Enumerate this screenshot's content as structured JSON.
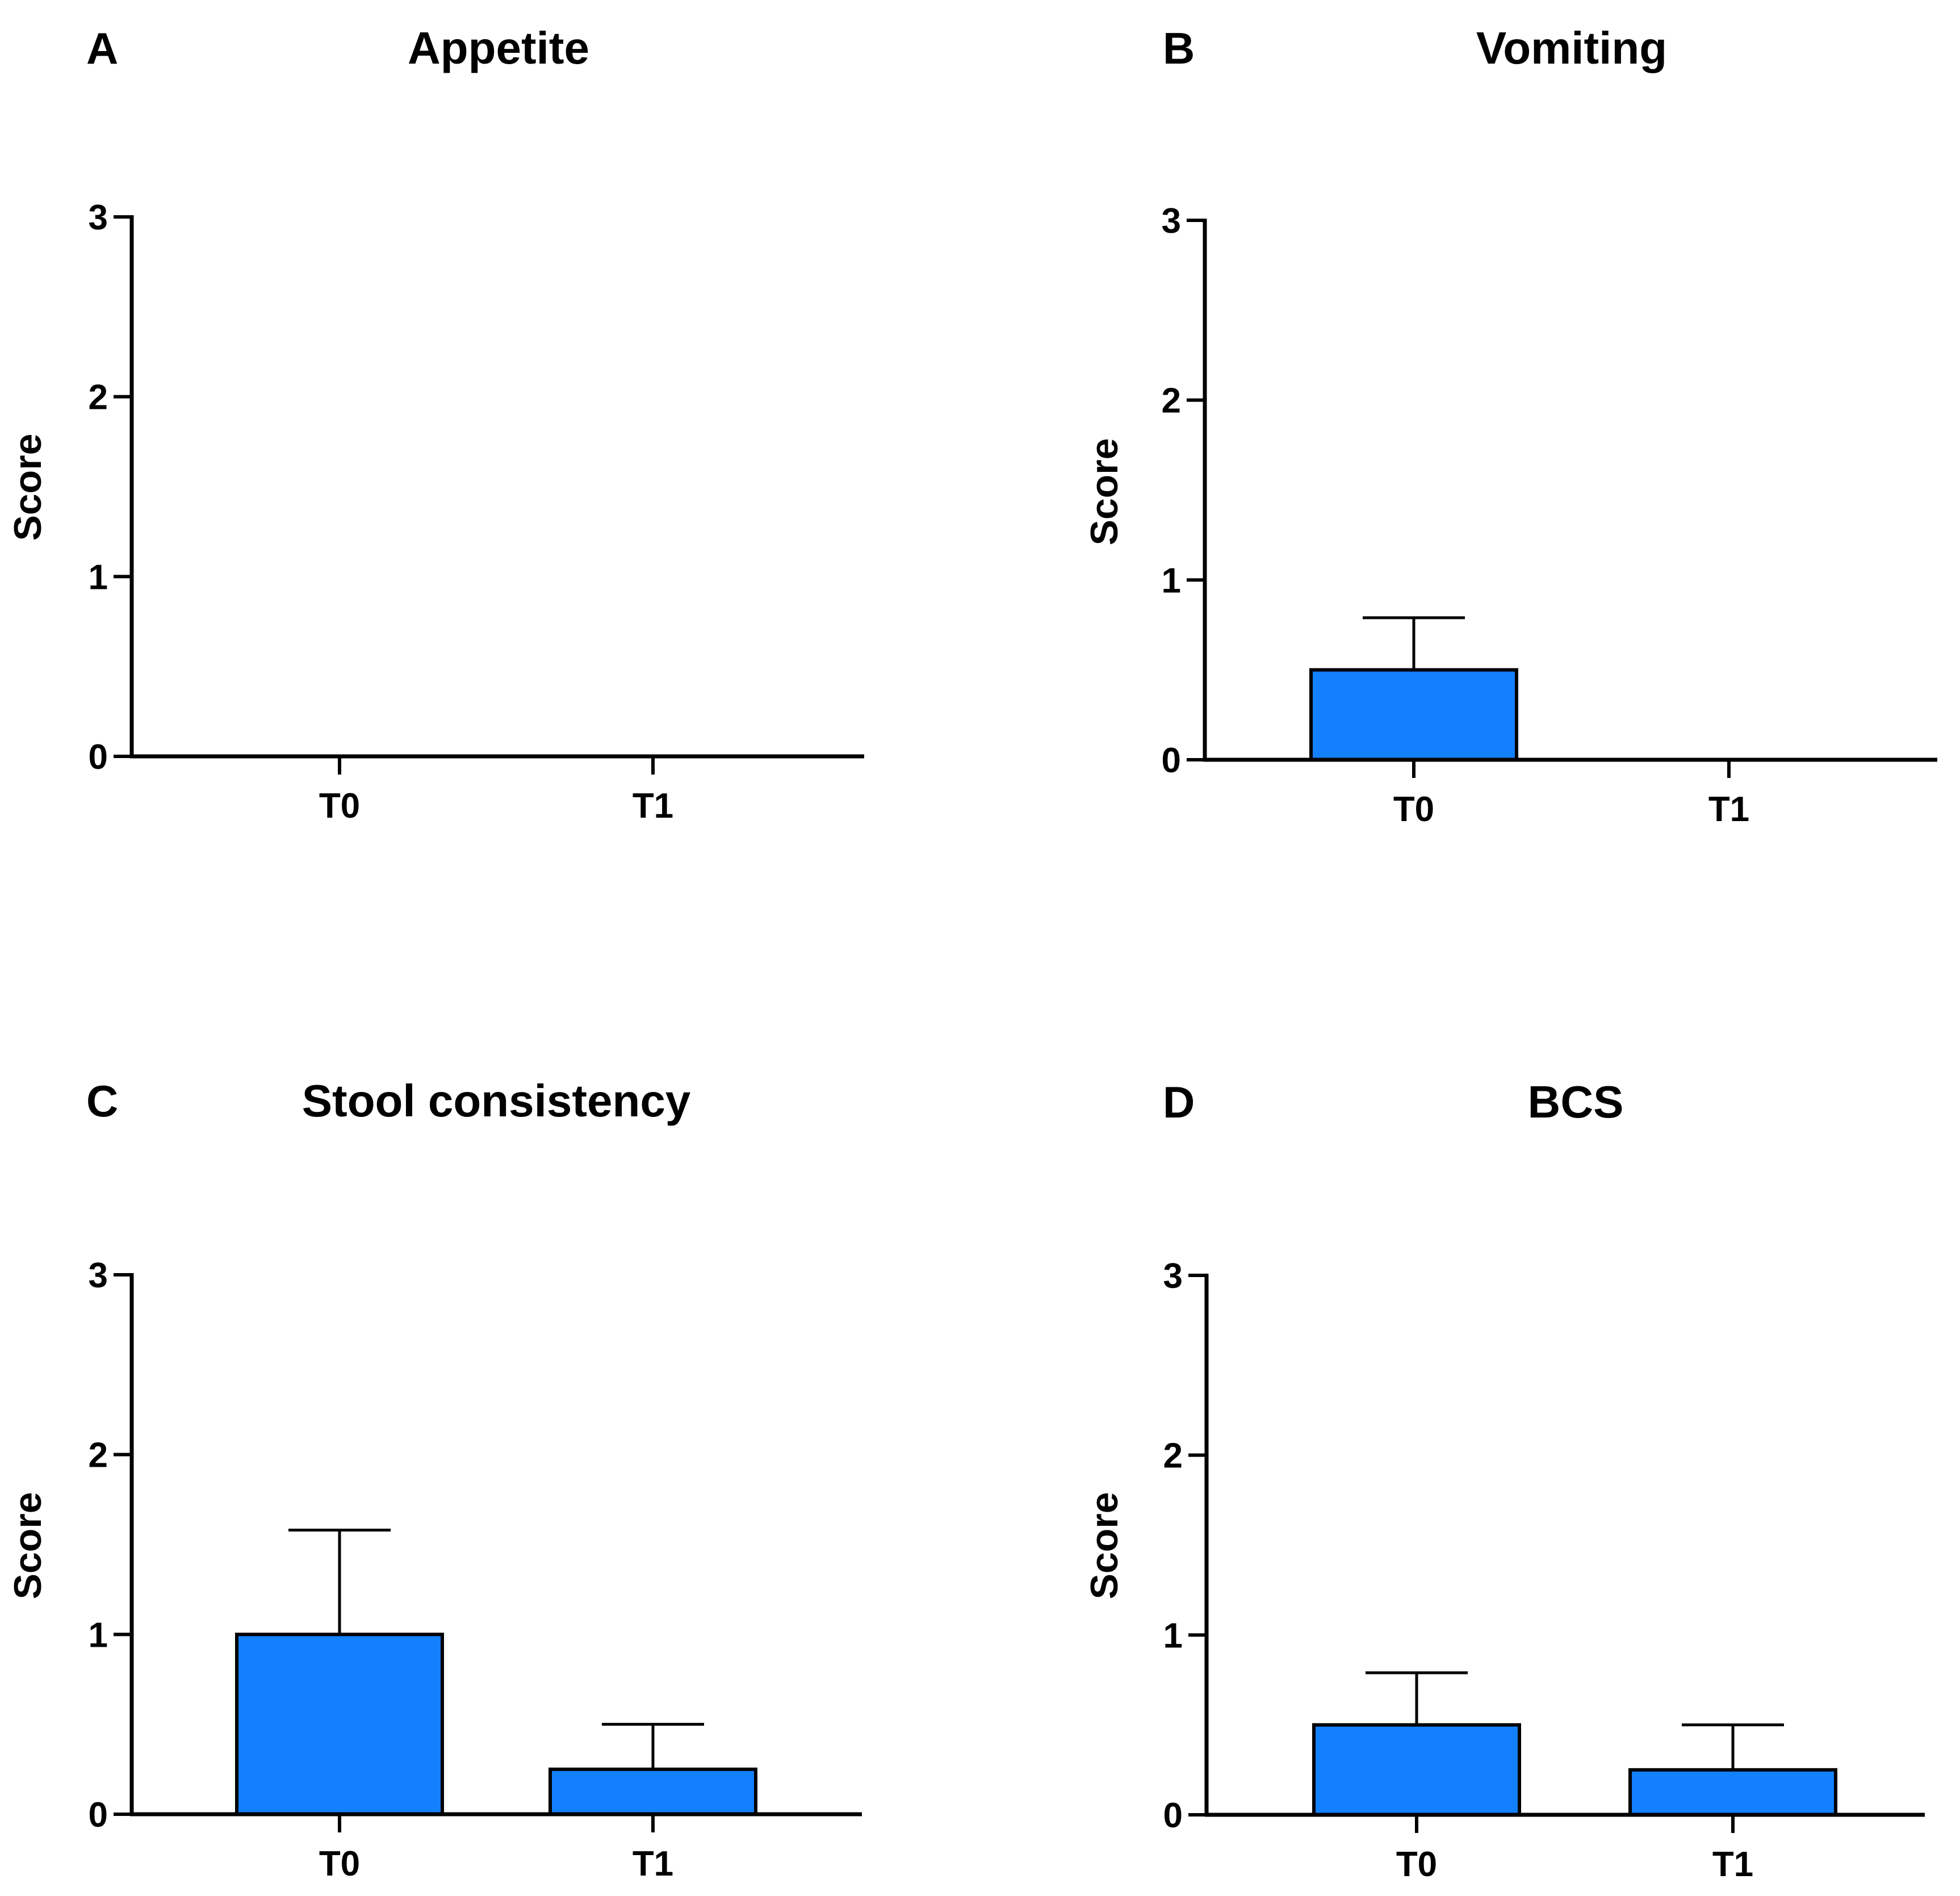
{
  "figure": {
    "bar_color": "#1380FF",
    "axis_color": "#000000"
  },
  "chart_data": [
    {
      "panel": "A",
      "type": "bar",
      "title": "Appetite",
      "ylabel": "Score",
      "xlabel": "",
      "categories": [
        "T0",
        "T1"
      ],
      "values": [
        0,
        0
      ],
      "error": [
        0,
        0
      ],
      "ylim": [
        0,
        3
      ],
      "yticks": [
        "0",
        "1",
        "2",
        "3"
      ],
      "grid": false
    },
    {
      "panel": "B",
      "type": "bar",
      "title": "Vomiting",
      "ylabel": "Score",
      "xlabel": "",
      "categories": [
        "T0",
        "T1"
      ],
      "values": [
        0.5,
        0
      ],
      "error": [
        0.29,
        0
      ],
      "ylim": [
        0,
        3
      ],
      "yticks": [
        "0",
        "1",
        "2",
        "3"
      ],
      "grid": false
    },
    {
      "panel": "C",
      "type": "bar",
      "title": "Stool consistency",
      "ylabel": "Score",
      "xlabel": "",
      "categories": [
        "T0",
        "T1"
      ],
      "values": [
        1.0,
        0.25
      ],
      "error": [
        0.58,
        0.25
      ],
      "ylim": [
        0,
        3
      ],
      "yticks": [
        "0",
        "1",
        "2",
        "3"
      ],
      "grid": false
    },
    {
      "panel": "D",
      "type": "bar",
      "title": "BCS",
      "ylabel": "Score",
      "xlabel": "",
      "categories": [
        "T0",
        "T1"
      ],
      "values": [
        0.5,
        0.25
      ],
      "error": [
        0.29,
        0.25
      ],
      "ylim": [
        0,
        3
      ],
      "yticks": [
        "0",
        "1",
        "2",
        "3"
      ],
      "grid": false
    }
  ]
}
